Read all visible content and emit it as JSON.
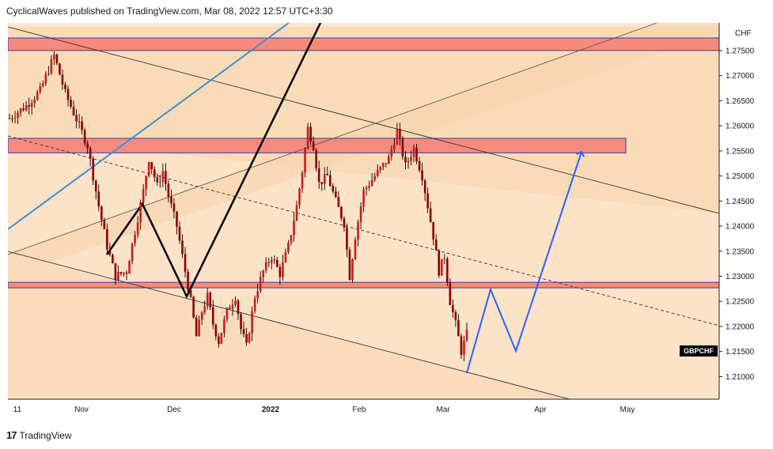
{
  "header": {
    "publisher": "CyclicalWaves published on TradingView.com, Mar 08, 2022 12:57 UTC+3:30"
  },
  "footer": {
    "brand_logo": "17",
    "brand_name": "TradingView"
  },
  "chart_data": {
    "type": "candlestick",
    "symbol": "GBPCHF",
    "currency": "CHF",
    "y_axis": {
      "ticks": [
        "1.27500",
        "1.27000",
        "1.26500",
        "1.26000",
        "1.25500",
        "1.25000",
        "1.24500",
        "1.24000",
        "1.23500",
        "1.23000",
        "1.22500",
        "1.22000",
        "1.21500",
        "1.21000"
      ],
      "ylim": [
        1.2055,
        1.2805
      ]
    },
    "x_axis": {
      "ticks": [
        "11",
        "Nov",
        "Dec",
        "2022",
        "Feb",
        "Mar",
        "Apr",
        "May"
      ]
    },
    "last_price_label": "GBPCHF",
    "price_path": [
      [
        0,
        1.2615
      ],
      [
        6,
        1.264
      ],
      [
        11,
        1.267
      ],
      [
        16,
        1.274
      ],
      [
        20,
        1.2665
      ],
      [
        25,
        1.26
      ],
      [
        28,
        1.256
      ],
      [
        30,
        1.25
      ],
      [
        32,
        1.244
      ],
      [
        35,
        1.236
      ],
      [
        38,
        1.23
      ],
      [
        42,
        1.231
      ],
      [
        45,
        1.239
      ],
      [
        48,
        1.247
      ],
      [
        50,
        1.2535
      ],
      [
        53,
        1.248
      ],
      [
        55,
        1.251
      ],
      [
        57,
        1.246
      ],
      [
        60,
        1.24
      ],
      [
        63,
        1.231
      ],
      [
        65,
        1.225
      ],
      [
        67,
        1.218
      ],
      [
        69,
        1.223
      ],
      [
        71,
        1.226
      ],
      [
        73,
        1.2205
      ],
      [
        75,
        1.217
      ],
      [
        78,
        1.223
      ],
      [
        81,
        1.226
      ],
      [
        83,
        1.2195
      ],
      [
        85,
        1.216
      ],
      [
        88,
        1.226
      ],
      [
        91,
        1.231
      ],
      [
        94,
        1.234
      ],
      [
        97,
        1.2305
      ],
      [
        100,
        1.236
      ],
      [
        103,
        1.244
      ],
      [
        105,
        1.251
      ],
      [
        107,
        1.2595
      ],
      [
        109,
        1.256
      ],
      [
        111,
        1.2485
      ],
      [
        114,
        1.25
      ],
      [
        117,
        1.245
      ],
      [
        120,
        1.2405
      ],
      [
        122,
        1.23
      ],
      [
        124,
        1.238
      ],
      [
        127,
        1.247
      ],
      [
        131,
        1.25
      ],
      [
        136,
        1.2535
      ],
      [
        139,
        1.259
      ],
      [
        142,
        1.252
      ],
      [
        145,
        1.2555
      ],
      [
        148,
        1.25
      ],
      [
        150,
        1.244
      ],
      [
        152,
        1.238
      ],
      [
        154,
        1.231
      ],
      [
        156,
        1.234
      ],
      [
        158,
        1.225
      ],
      [
        160,
        1.2205
      ],
      [
        162,
        1.215
      ],
      [
        164,
        1.2185
      ]
    ],
    "zones": [
      {
        "name": "resistance-top",
        "from": 1.275,
        "to": 1.2775,
        "color": "#f78b7b"
      },
      {
        "name": "resistance-mid",
        "from": 1.2546,
        "to": 1.2575,
        "color": "#f78b7b"
      },
      {
        "name": "support",
        "from": 1.2277,
        "to": 1.2288,
        "color": "#f78b7b"
      }
    ],
    "colors": {
      "candle": "#8b0000",
      "wick": "#000000",
      "projection": "#2962ff",
      "trend_blue": "#3d8fd6",
      "zone_border": "#3a3ab0",
      "channel_fill_dark": "#f9d7b0",
      "channel_fill_light": "#fde6cf"
    },
    "grid": false
  }
}
